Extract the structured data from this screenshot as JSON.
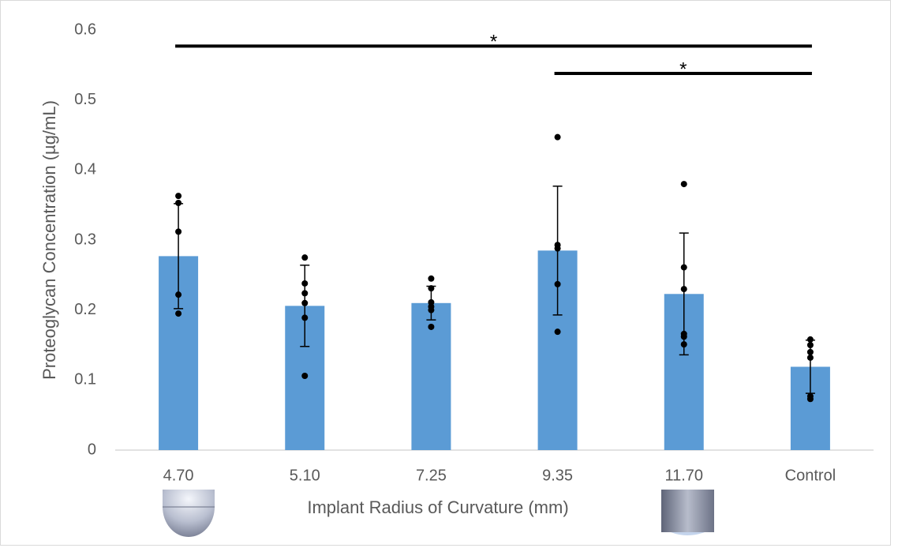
{
  "chart_data": {
    "type": "bar",
    "x_label": "Implant Radius of Curvature (mm)",
    "y_label": "Proteoglycan Concentration (µg/mL)",
    "categories": [
      "4.70",
      "5.10",
      "7.25",
      "9.35",
      "11.70",
      "Control"
    ],
    "values": [
      0.277,
      0.206,
      0.21,
      0.285,
      0.223,
      0.119
    ],
    "errors": [
      0.075,
      0.058,
      0.024,
      0.092,
      0.087,
      0.038
    ],
    "points": [
      [
        0.363,
        0.353,
        0.312,
        0.222,
        0.195
      ],
      [
        0.275,
        0.238,
        0.224,
        0.21,
        0.189,
        0.106
      ],
      [
        0.245,
        0.231,
        0.211,
        0.205,
        0.2,
        0.176
      ],
      [
        0.447,
        0.293,
        0.288,
        0.237,
        0.169
      ],
      [
        0.38,
        0.261,
        0.23,
        0.166,
        0.162,
        0.151
      ],
      [
        0.158,
        0.15,
        0.14,
        0.132,
        0.077,
        0.073
      ]
    ],
    "color": "#5b9bd5",
    "ylim": [
      0,
      0.6
    ],
    "yticks": [
      0,
      0.1,
      0.2,
      0.3,
      0.4,
      0.5,
      0.6
    ],
    "significance": [
      {
        "label": "*",
        "from": 0,
        "to": 5,
        "y": 0.577
      },
      {
        "label": "*",
        "from": 3,
        "to": 5,
        "y": 0.538
      }
    ]
  }
}
